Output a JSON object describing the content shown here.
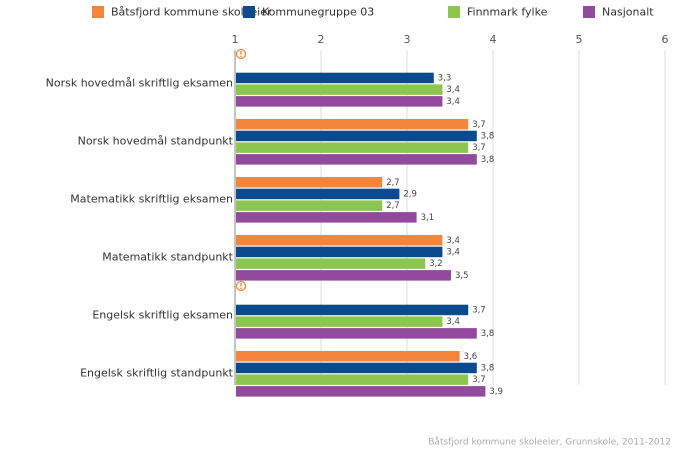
{
  "chart_data": {
    "type": "hbar",
    "categories": [
      "Norsk hovedmål skriftlig eksamen",
      "Norsk hovedmål standpunkt",
      "Matematikk skriftlig eksamen",
      "Matematikk standpunkt",
      "Engelsk skriftlig eksamen",
      "Engelsk skriftlig standpunkt"
    ],
    "series": [
      {
        "name": "Båtsfjord kommune skoleeier",
        "color": "#f5853a",
        "values": [
          null,
          3.7,
          2.7,
          3.4,
          null,
          3.6
        ],
        "value_labels": [
          null,
          "3,7",
          "2,7",
          "3,4",
          null,
          "3,6"
        ]
      },
      {
        "name": "Kommunegruppe 03",
        "color": "#0b4a8f",
        "values": [
          3.3,
          3.8,
          2.9,
          3.4,
          3.7,
          3.8
        ],
        "value_labels": [
          "3,3",
          "3,8",
          "2,9",
          "3,4",
          "3,7",
          "3,8"
        ]
      },
      {
        "name": "Finnmark fylke",
        "color": "#8dc64f",
        "values": [
          3.4,
          3.7,
          2.7,
          3.2,
          3.4,
          3.7
        ],
        "value_labels": [
          "3,4",
          "3,7",
          "2,7",
          "3,2",
          "3,4",
          "3,7"
        ]
      },
      {
        "name": "Nasjonalt",
        "color": "#914a9c",
        "values": [
          3.4,
          3.8,
          3.1,
          3.5,
          3.8,
          3.9
        ],
        "value_labels": [
          "3,4",
          "3,8",
          "3,1",
          "3,5",
          "3,8",
          "3,9"
        ]
      }
    ],
    "xlim": [
      1,
      6
    ],
    "xticks": [
      1,
      2,
      3,
      4,
      5,
      6
    ],
    "grid": true,
    "source": "Båtsfjord kommune skoleeier, Grunnskole, 2011-2012"
  }
}
